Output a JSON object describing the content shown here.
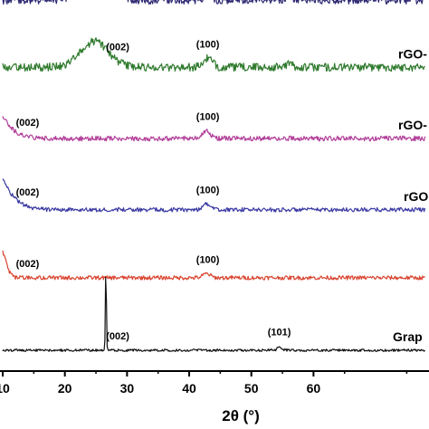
{
  "chart_data": {
    "type": "line",
    "title": "",
    "xlabel": "2θ (°)",
    "ylabel": "",
    "xlim": [
      0,
      68
    ],
    "x_ticks": [
      {
        "value": 0,
        "label": "10"
      },
      {
        "value": 10,
        "label": "20"
      },
      {
        "value": 20,
        "label": "30"
      },
      {
        "value": 30,
        "label": "40"
      },
      {
        "value": 40,
        "label": "50"
      },
      {
        "value": 50,
        "label": "60"
      }
    ],
    "series": [
      {
        "name": "rGO-",
        "color": "#2e2a73",
        "offset": 0.86,
        "noise": 0.01,
        "peaks": [
          {
            "x": 14.5,
            "h": 0.065,
            "w": 2.0
          },
          {
            "x": 18.0,
            "h": 0.022,
            "w": 1.0
          },
          {
            "x": 33.0,
            "h": 0.015,
            "w": 0.6
          },
          {
            "x": 46.0,
            "h": 0.006,
            "w": 0.5
          }
        ],
        "annotations": [
          {
            "x": 18.5,
            "label": "(002)"
          },
          {
            "x": 33.0,
            "label": "(100)"
          }
        ]
      },
      {
        "name": "rGO-",
        "color": "#2f7a2d",
        "offset": 0.695,
        "noise": 0.01,
        "peaks": [
          {
            "x": 14.8,
            "h": 0.063,
            "w": 2.2
          },
          {
            "x": 33.0,
            "h": 0.022,
            "w": 0.7
          },
          {
            "x": 46.0,
            "h": 0.008,
            "w": 0.6
          }
        ],
        "annotations": [
          {
            "x": 18.5,
            "label": "(002)"
          },
          {
            "x": 33.0,
            "label": "(100)"
          }
        ]
      },
      {
        "name": "rGO-",
        "color": "#b23f9a",
        "offset": 0.52,
        "noise": 0.006,
        "peaks": [
          {
            "x": -8.5,
            "h": 0.55,
            "w": 4.0
          },
          {
            "x": 32.8,
            "h": 0.02,
            "w": 0.6
          }
        ],
        "annotations": [
          {
            "x": 4.0,
            "label": "(002)"
          },
          {
            "x": 33.0,
            "label": "(100)"
          }
        ]
      },
      {
        "name": "rGO",
        "color": "#3a3aa3",
        "offset": 0.345,
        "noise": 0.005,
        "peaks": [
          {
            "x": -7.0,
            "h": 0.35,
            "w": 4.0
          },
          {
            "x": 32.8,
            "h": 0.015,
            "w": 0.6
          }
        ],
        "annotations": [
          {
            "x": 4.0,
            "label": "(002)"
          },
          {
            "x": 33.0,
            "label": "(100)"
          }
        ]
      },
      {
        "name": "",
        "color": "#d8432e",
        "offset": 0.178,
        "noise": 0.005,
        "peaks": [
          {
            "x": -0.3,
            "h": 0.068,
            "w": 0.8
          },
          {
            "x": 32.8,
            "h": 0.01,
            "w": 0.6
          }
        ],
        "annotations": [
          {
            "x": 4.0,
            "label": "(002)"
          },
          {
            "x": 33.0,
            "label": "(100)"
          }
        ]
      },
      {
        "name": "Grap",
        "color": "#111111",
        "offset": 0.0,
        "noise": 0.003,
        "peaks": [
          {
            "x": 16.6,
            "h": 0.205,
            "w": 0.08
          },
          {
            "x": 44.5,
            "h": 0.01,
            "w": 0.3
          }
        ],
        "annotations": [
          {
            "x": 18.5,
            "label": "(002)"
          },
          {
            "x": 44.5,
            "label": "(101)"
          }
        ]
      }
    ]
  }
}
